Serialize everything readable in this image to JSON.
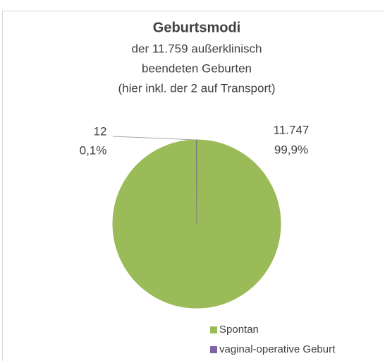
{
  "chart_data": {
    "type": "pie",
    "title": "Geburtsmodi",
    "subtitle": [
      "der 11.759 außerklinisch",
      "beendeten Geburten",
      "(hier inkl. der 2 auf Transport)"
    ],
    "categories": [
      "Spontan",
      "vaginal-operative Geburt"
    ],
    "values": [
      11747,
      12
    ],
    "value_labels": [
      "11.747",
      "12"
    ],
    "percent_labels": [
      "99,9%",
      "0,1%"
    ],
    "colors": [
      "#9bbb59",
      "#8064a2"
    ],
    "legend": "bottom"
  }
}
